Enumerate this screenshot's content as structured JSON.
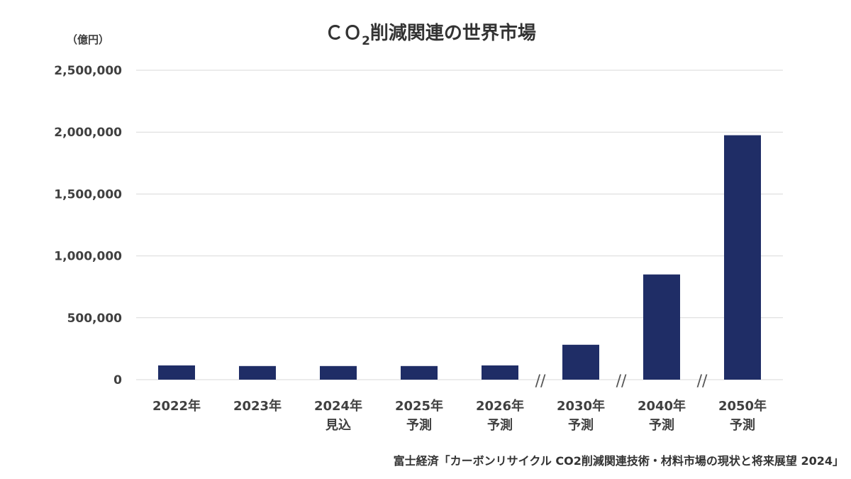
{
  "chart_data": {
    "type": "bar",
    "title": {
      "prefix": "ＣＯ",
      "subscript": "2",
      "rest": "削減関連の世界市場"
    },
    "unit_label": "（億円）",
    "categories": [
      [
        "2022年"
      ],
      [
        "2023年"
      ],
      [
        "2024年",
        "見込"
      ],
      [
        "2025年",
        "予測"
      ],
      [
        "2026年",
        "予測"
      ],
      [
        "2030年",
        "予測"
      ],
      [
        "2040年",
        "予測"
      ],
      [
        "2050年",
        "予測"
      ]
    ],
    "values": [
      115000,
      110000,
      110000,
      110000,
      115000,
      282000,
      850000,
      1975000
    ],
    "ylim": [
      0,
      2500000
    ],
    "yticks": [
      0,
      500000,
      1000000,
      1500000,
      2000000,
      2500000
    ],
    "ytick_labels": [
      "0",
      "500,000",
      "1,000,000",
      "1,500,000",
      "2,000,000",
      "2,500,000"
    ],
    "axis_breaks_after": [
      4,
      5,
      6
    ],
    "break_mark": "//",
    "grid": true,
    "bar_color": "#1f2d66",
    "source": "富士経済「カーボンリサイクル CO2削減関連技術・材料市場の現状と将来展望 2024」"
  }
}
